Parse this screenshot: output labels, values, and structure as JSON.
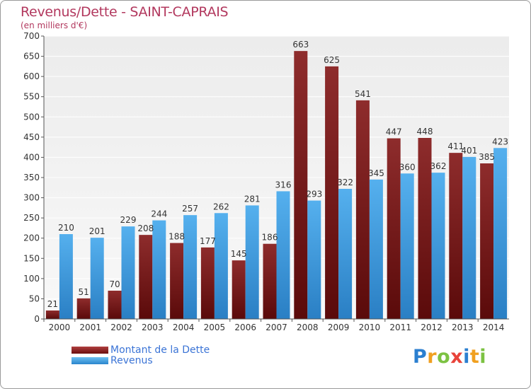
{
  "title": "Revenus/Dette - SAINT-CAPRAIS",
  "subtitle": "(en milliers d'€)",
  "colors": {
    "title": "#b2385e",
    "dette": "#8b1a1a",
    "revenus": "#3d9be0",
    "legend_text": "#3b74d6"
  },
  "legend": [
    {
      "label": "Montant de la Dette",
      "color": "#7a1212"
    },
    {
      "label": "Revenus",
      "color": "#3d9be0"
    }
  ],
  "logo": {
    "text": "Proxiti",
    "letters": [
      "P",
      "r",
      "o",
      "x",
      "i",
      "t",
      "i"
    ],
    "colors": [
      "#2b7fd0",
      "#f0a020",
      "#7cc242",
      "#e8433a",
      "#2b7fd0",
      "#f0a020",
      "#7cc242"
    ]
  },
  "chart_data": {
    "type": "bar",
    "title": "Revenus/Dette - SAINT-CAPRAIS",
    "subtitle": "(en milliers d'€)",
    "categories": [
      "2000",
      "2001",
      "2002",
      "2003",
      "2004",
      "2005",
      "2006",
      "2007",
      "2008",
      "2009",
      "2010",
      "2011",
      "2012",
      "2013",
      "2014"
    ],
    "series": [
      {
        "name": "Montant de la Dette",
        "values": [
          21,
          51,
          70,
          208,
          188,
          177,
          145,
          186,
          663,
          625,
          541,
          447,
          448,
          411,
          385
        ]
      },
      {
        "name": "Revenus",
        "values": [
          210,
          201,
          229,
          244,
          257,
          262,
          281,
          316,
          293,
          322,
          345,
          360,
          362,
          401,
          423
        ]
      }
    ],
    "yticks": [
      0,
      50,
      100,
      150,
      200,
      250,
      300,
      350,
      400,
      450,
      500,
      550,
      600,
      650,
      700
    ],
    "ylim": [
      0,
      700
    ],
    "grid": true,
    "legend_position": "bottom-left"
  }
}
